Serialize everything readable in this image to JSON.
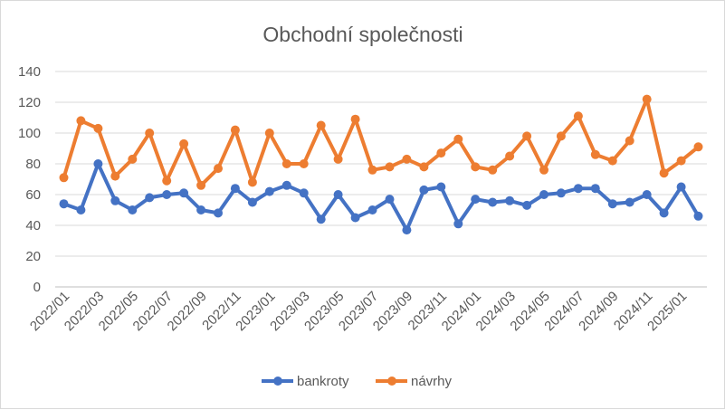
{
  "chart_data": {
    "type": "line",
    "title": "Obchodní společnosti",
    "xlabel": "",
    "ylabel": "",
    "ylim": [
      0,
      140
    ],
    "yticks": [
      0,
      20,
      40,
      60,
      80,
      100,
      120,
      140
    ],
    "grid": true,
    "legend_position": "bottom",
    "x": [
      "2022/01",
      "2022/02",
      "2022/03",
      "2022/04",
      "2022/05",
      "2022/06",
      "2022/07",
      "2022/08",
      "2022/09",
      "2022/10",
      "2022/11",
      "2022/12",
      "2023/01",
      "2023/02",
      "2023/03",
      "2023/04",
      "2023/05",
      "2023/06",
      "2023/07",
      "2023/08",
      "2023/09",
      "2023/10",
      "2023/11",
      "2023/12",
      "2024/01",
      "2024/02",
      "2024/03",
      "2024/04",
      "2024/05",
      "2024/06",
      "2024/07",
      "2024/08",
      "2024/09",
      "2024/10",
      "2024/11",
      "2024/12",
      "2025/01",
      "2025/02"
    ],
    "x_tick_labels": [
      "2022/01",
      "2022/03",
      "2022/05",
      "2022/07",
      "2022/09",
      "2022/11",
      "2023/01",
      "2023/03",
      "2023/05",
      "2023/07",
      "2023/09",
      "2023/11",
      "2024/01",
      "2024/03",
      "2024/05",
      "2024/07",
      "2024/09",
      "2024/11",
      "2025/01"
    ],
    "series": [
      {
        "name": "bankroty",
        "color": "#4472c4",
        "values": [
          54,
          50,
          80,
          56,
          50,
          58,
          60,
          61,
          50,
          48,
          64,
          55,
          62,
          66,
          61,
          44,
          60,
          45,
          50,
          57,
          37,
          63,
          65,
          41,
          57,
          55,
          56,
          53,
          60,
          61,
          64,
          64,
          54,
          55,
          60,
          48,
          65,
          46
        ]
      },
      {
        "name": "návrhy",
        "color": "#ed7d31",
        "values": [
          71,
          108,
          103,
          72,
          83,
          100,
          69,
          93,
          66,
          77,
          102,
          68,
          100,
          80,
          80,
          105,
          83,
          109,
          76,
          78,
          83,
          78,
          87,
          96,
          78,
          76,
          85,
          98,
          76,
          98,
          111,
          86,
          82,
          95,
          122,
          74,
          82,
          91
        ]
      }
    ]
  }
}
